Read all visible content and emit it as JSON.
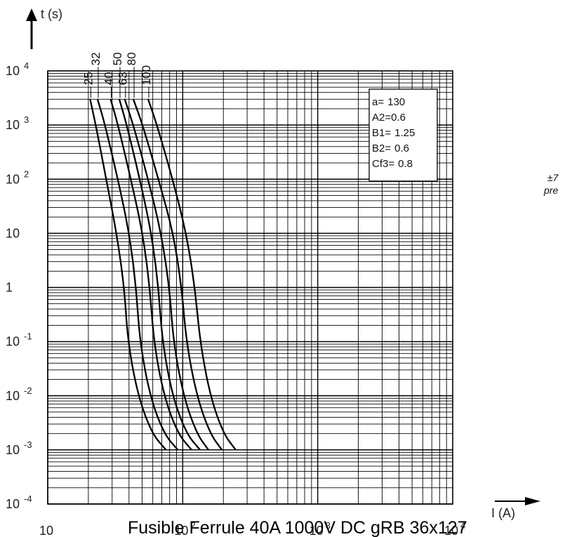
{
  "chart_data": {
    "type": "line",
    "title": "Fusible Ferrule 40A 1000V DC gRB 36x127",
    "xlabel": "I (A)",
    "ylabel": "t (s)",
    "x_scale": "log",
    "y_scale": "log",
    "xlim": [
      10,
      10000
    ],
    "ylim": [
      0.0001,
      10000
    ],
    "grid": true,
    "y_ticks": [
      {
        "base": "10",
        "exp": "4"
      },
      {
        "base": "10",
        "exp": "3"
      },
      {
        "base": "10",
        "exp": "2"
      },
      {
        "base": "10",
        "exp": ""
      },
      {
        "base": "1",
        "exp": ""
      },
      {
        "base": "10",
        "exp": "-1"
      },
      {
        "base": "10",
        "exp": "-2"
      },
      {
        "base": "10",
        "exp": "-3"
      },
      {
        "base": "10",
        "exp": "-4"
      }
    ],
    "x_ticks": [
      {
        "base": "10",
        "exp": ""
      },
      {
        "base": "10",
        "exp": "2"
      },
      {
        "base": "10",
        "exp": "3"
      },
      {
        "base": "10",
        "exp": "4"
      }
    ],
    "series": [
      {
        "name": "25",
        "points": [
          [
            20.6,
            3000
          ],
          [
            22.7,
            1000
          ],
          [
            27.1,
            100
          ],
          [
            32.4,
            10
          ],
          [
            36.9,
            1
          ],
          [
            39.2,
            0.1
          ],
          [
            46.6,
            0.01
          ],
          [
            59.2,
            0.002
          ],
          [
            75.2,
            0.001
          ]
        ]
      },
      {
        "name": "32",
        "points": [
          [
            23.4,
            3000
          ],
          [
            26.6,
            1000
          ],
          [
            33.1,
            100
          ],
          [
            40.2,
            10
          ],
          [
            45.2,
            1
          ],
          [
            48.1,
            0.1
          ],
          [
            57.1,
            0.01
          ],
          [
            72.4,
            0.002
          ],
          [
            91.9,
            0.001
          ]
        ]
      },
      {
        "name": "40",
        "points": [
          [
            29.2,
            3000
          ],
          [
            33.2,
            1000
          ],
          [
            41.3,
            100
          ],
          [
            50.5,
            10
          ],
          [
            57.1,
            1
          ],
          [
            61.0,
            0.1
          ],
          [
            72.4,
            0.01
          ],
          [
            91.9,
            0.002
          ],
          [
            116.4,
            0.001
          ]
        ]
      },
      {
        "name": "50",
        "points": [
          [
            33.9,
            3000
          ],
          [
            38.5,
            1000
          ],
          [
            48.1,
            100
          ],
          [
            58.7,
            10
          ],
          [
            66.1,
            1
          ],
          [
            70.6,
            0.1
          ],
          [
            83.7,
            0.01
          ],
          [
            106.3,
            0.002
          ],
          [
            134.4,
            0.001
          ]
        ]
      },
      {
        "name": "63",
        "points": [
          [
            37.2,
            3000
          ],
          [
            43.1,
            1000
          ],
          [
            55.4,
            100
          ],
          [
            69.3,
            10
          ],
          [
            79.7,
            1
          ],
          [
            85.2,
            0.1
          ],
          [
            101.2,
            0.01
          ],
          [
            126.8,
            0.002
          ],
          [
            155.1,
            0.001
          ]
        ]
      },
      {
        "name": "80",
        "points": [
          [
            43.1,
            3000
          ],
          [
            50.5,
            1000
          ],
          [
            66.1,
            100
          ],
          [
            85.2,
            10
          ],
          [
            98.2,
            1
          ],
          [
            106.3,
            0.1
          ],
          [
            126.8,
            0.01
          ],
          [
            159.4,
            0.002
          ],
          [
            195.2,
            0.001
          ]
        ]
      },
      {
        "name": "100",
        "points": [
          [
            55.4,
            3000
          ],
          [
            64.5,
            1000
          ],
          [
            84.1,
            100
          ],
          [
            106.3,
            10
          ],
          [
            123.1,
            1
          ],
          [
            134.4,
            0.1
          ],
          [
            159.4,
            0.01
          ],
          [
            200.0,
            0.002
          ],
          [
            247.2,
            0.001
          ]
        ]
      }
    ],
    "parameters": [
      {
        "label": "a=",
        "value": "130"
      },
      {
        "label": "A2=",
        "value": "0.6"
      },
      {
        "label": "B1=",
        "value": "1.25"
      },
      {
        "label": "B2=",
        "value": "0.6"
      },
      {
        "label": "Cf3=",
        "value": "0.8"
      }
    ],
    "side_note": [
      "±7",
      "pre"
    ]
  }
}
